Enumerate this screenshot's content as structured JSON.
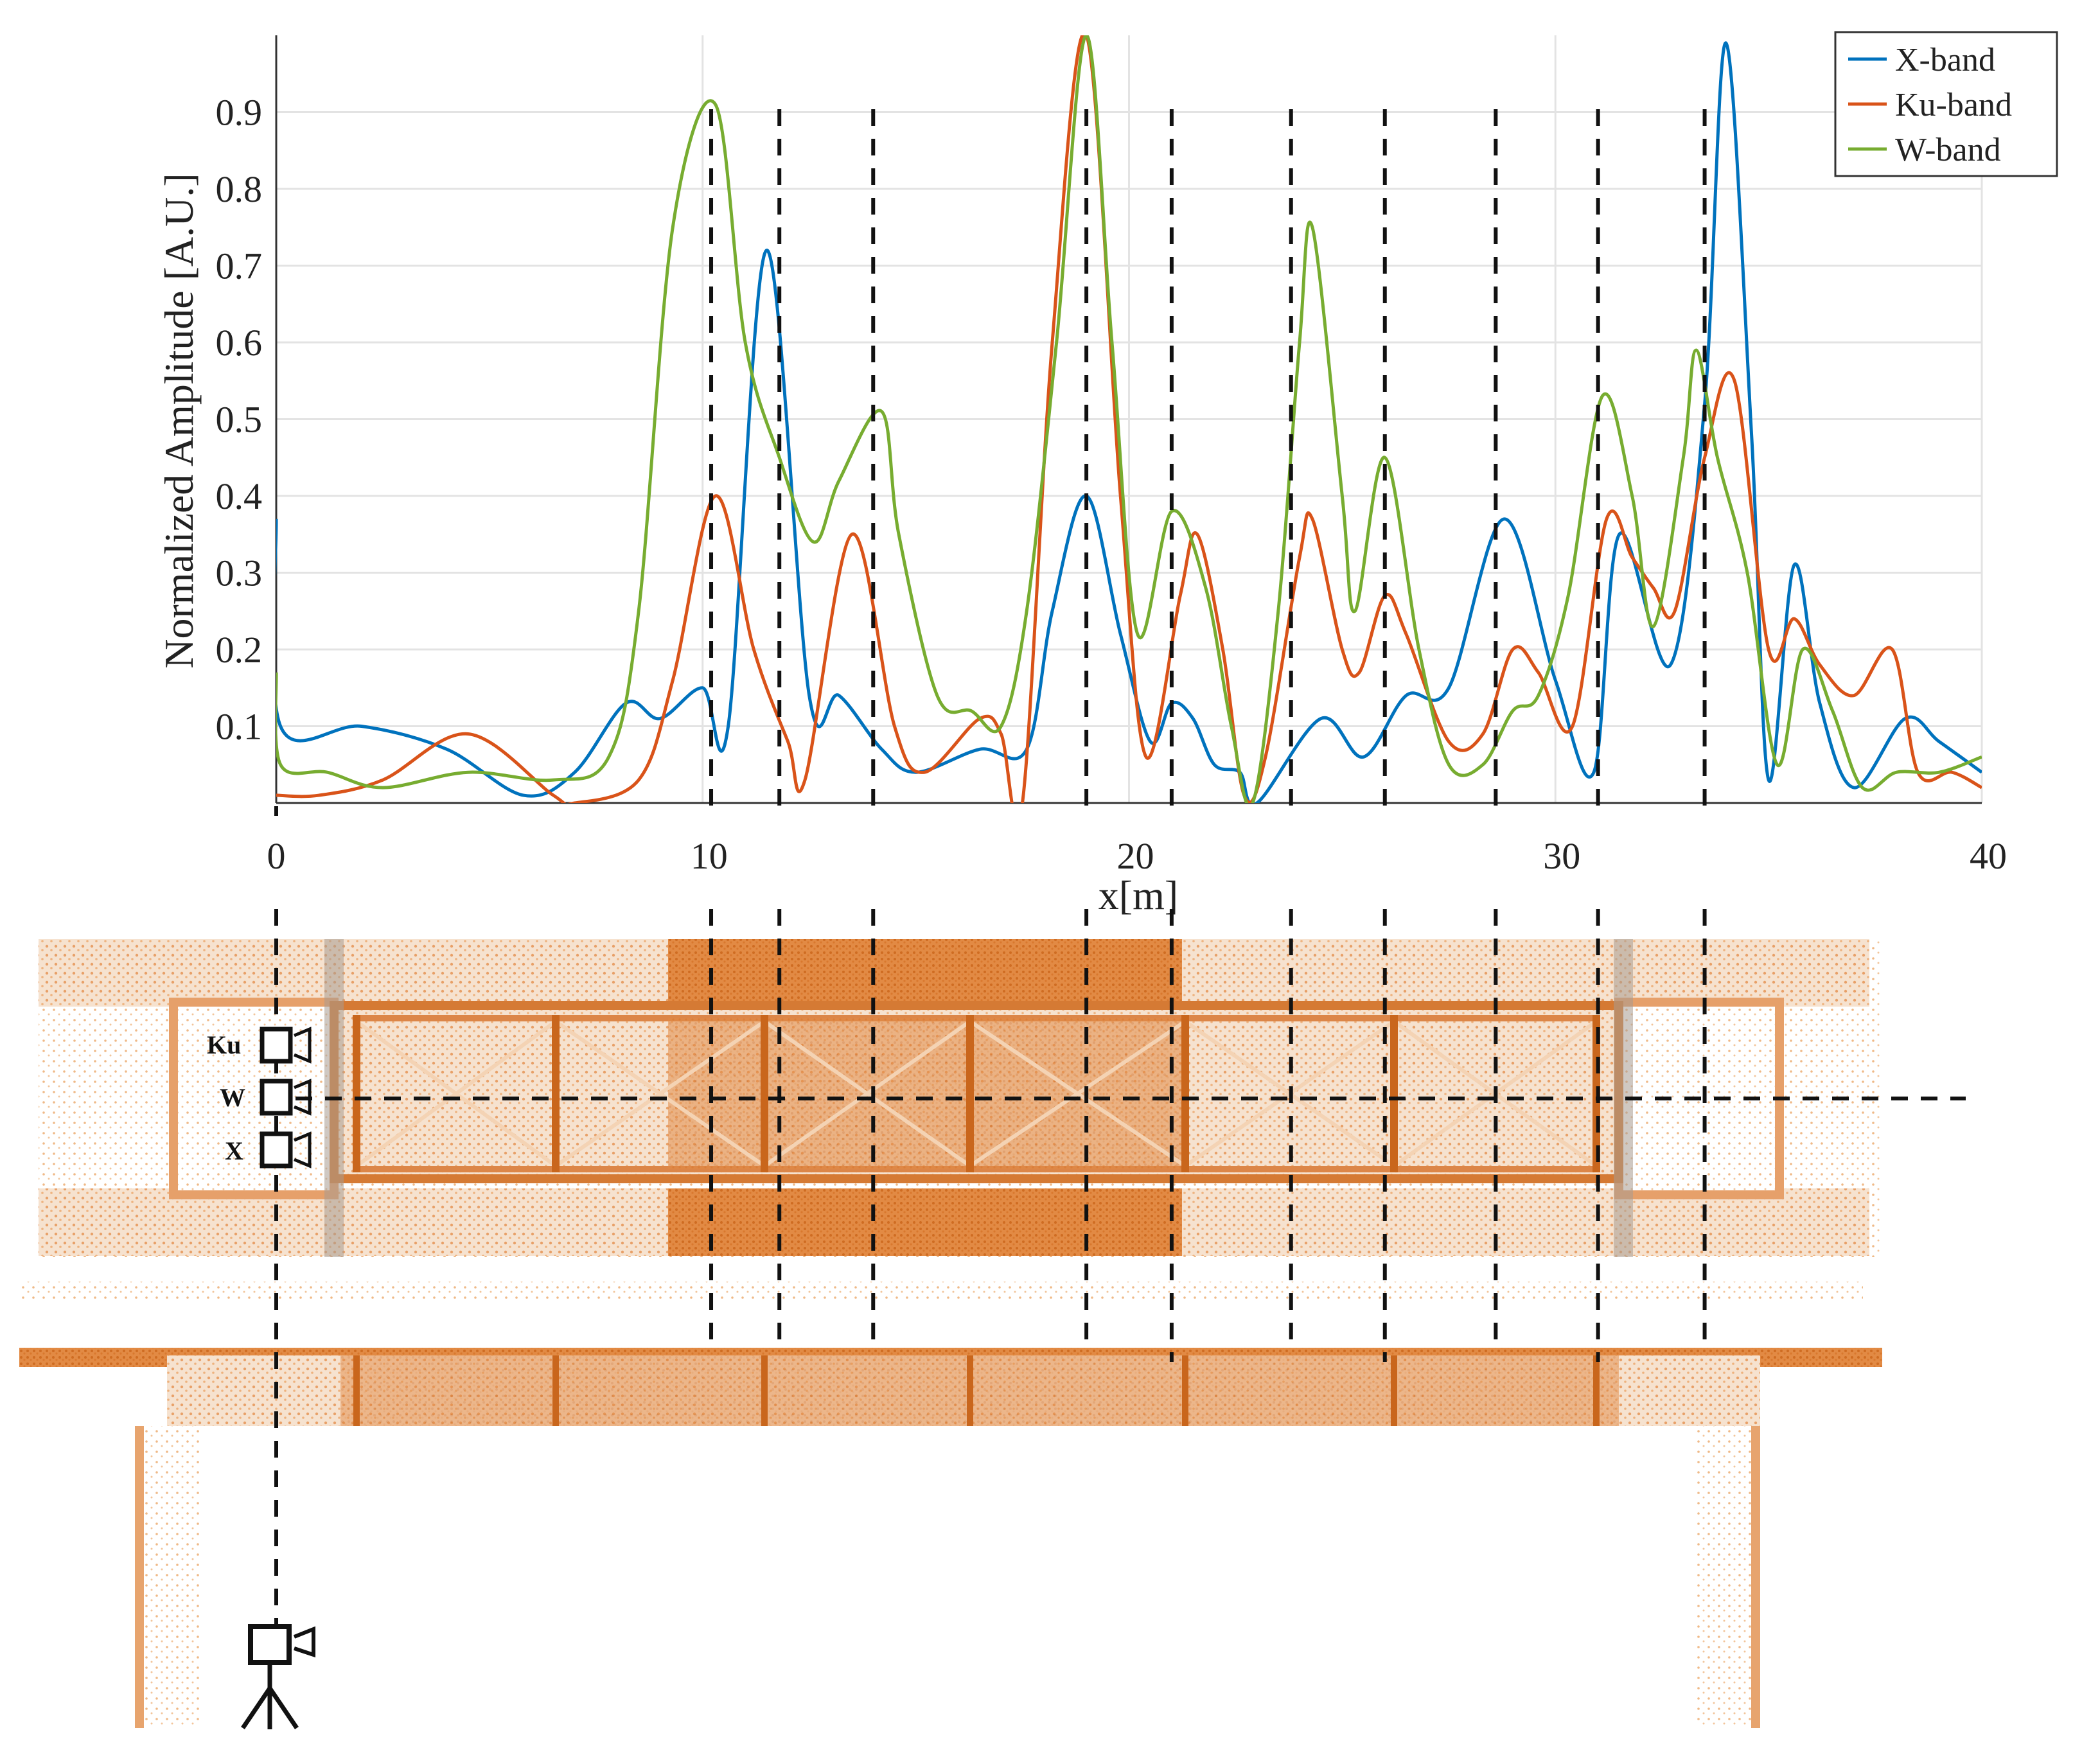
{
  "chart_data": {
    "type": "line",
    "title": "",
    "xlabel": "x[m]",
    "ylabel": "Normalized Amplitude [A.U.]",
    "xlim": [
      0,
      40
    ],
    "ylim": [
      0,
      1
    ],
    "xticks": [
      0,
      10,
      20,
      30,
      40
    ],
    "yticks": [
      0.1,
      0.2,
      0.3,
      0.4,
      0.5,
      0.6,
      0.7,
      0.8,
      0.9
    ],
    "grid": true,
    "legend_position": "top-right",
    "series": [
      {
        "name": "X-band",
        "color": "#0072BD",
        "points": [
          [
            0,
            0.37
          ],
          [
            0.1,
            0.1
          ],
          [
            2,
            0.1
          ],
          [
            4,
            0.07
          ],
          [
            5.8,
            0.01
          ],
          [
            7,
            0.04
          ],
          [
            8.2,
            0.13
          ],
          [
            9,
            0.11
          ],
          [
            10,
            0.15
          ],
          [
            10.6,
            0.1
          ],
          [
            11.5,
            0.72
          ],
          [
            12.5,
            0.14
          ],
          [
            13.2,
            0.14
          ],
          [
            14.2,
            0.07
          ],
          [
            15,
            0.04
          ],
          [
            16.5,
            0.07
          ],
          [
            17.6,
            0.07
          ],
          [
            18.2,
            0.25
          ],
          [
            19,
            0.4
          ],
          [
            19.8,
            0.22
          ],
          [
            20.5,
            0.08
          ],
          [
            21,
            0.13
          ],
          [
            21.5,
            0.11
          ],
          [
            22,
            0.05
          ],
          [
            22.6,
            0.04
          ],
          [
            23,
            0
          ],
          [
            24.5,
            0.11
          ],
          [
            25.5,
            0.06
          ],
          [
            26.5,
            0.14
          ],
          [
            27.5,
            0.15
          ],
          [
            28.8,
            0.37
          ],
          [
            30,
            0.16
          ],
          [
            30.9,
            0.04
          ],
          [
            31.5,
            0.35
          ],
          [
            32.7,
            0.18
          ],
          [
            33.5,
            0.52
          ],
          [
            34,
            0.99
          ],
          [
            34.6,
            0.48
          ],
          [
            35,
            0.03
          ],
          [
            35.6,
            0.31
          ],
          [
            36.2,
            0.13
          ],
          [
            37,
            0.02
          ],
          [
            38.2,
            0.11
          ],
          [
            39,
            0.08
          ],
          [
            40,
            0.04
          ]
        ]
      },
      {
        "name": "Ku-band",
        "color": "#D95319",
        "points": [
          [
            0,
            0.01
          ],
          [
            1,
            0.01
          ],
          [
            2.5,
            0.03
          ],
          [
            4.5,
            0.09
          ],
          [
            6.5,
            0.01
          ],
          [
            7,
            0
          ],
          [
            8.5,
            0.03
          ],
          [
            9.3,
            0.16
          ],
          [
            10.3,
            0.4
          ],
          [
            11.2,
            0.2
          ],
          [
            12,
            0.08
          ],
          [
            12.4,
            0.03
          ],
          [
            13.5,
            0.35
          ],
          [
            14.5,
            0.1
          ],
          [
            15.2,
            0.04
          ],
          [
            16.5,
            0.11
          ],
          [
            17,
            0.09
          ],
          [
            17.5,
            0
          ],
          [
            18.2,
            0.6
          ],
          [
            19,
            1.0
          ],
          [
            19.8,
            0.4
          ],
          [
            20.4,
            0.06
          ],
          [
            21.2,
            0.27
          ],
          [
            21.6,
            0.35
          ],
          [
            22.2,
            0.2
          ],
          [
            22.7,
            0.01
          ],
          [
            23.2,
            0.06
          ],
          [
            24,
            0.32
          ],
          [
            24.3,
            0.37
          ],
          [
            25,
            0.2
          ],
          [
            25.4,
            0.17
          ],
          [
            26,
            0.27
          ],
          [
            26.5,
            0.22
          ],
          [
            27.5,
            0.08
          ],
          [
            28.3,
            0.09
          ],
          [
            29,
            0.2
          ],
          [
            29.6,
            0.17
          ],
          [
            30.4,
            0.1
          ],
          [
            31.2,
            0.37
          ],
          [
            31.8,
            0.32
          ],
          [
            32.3,
            0.28
          ],
          [
            32.8,
            0.25
          ],
          [
            33.5,
            0.45
          ],
          [
            34.2,
            0.55
          ],
          [
            35,
            0.2
          ],
          [
            35.6,
            0.24
          ],
          [
            36.2,
            0.18
          ],
          [
            37,
            0.14
          ],
          [
            37.9,
            0.2
          ],
          [
            38.5,
            0.04
          ],
          [
            39.3,
            0.04
          ],
          [
            40,
            0.02
          ]
        ]
      },
      {
        "name": "W-band",
        "color": "#77AC30",
        "points": [
          [
            0,
            0.17
          ],
          [
            0.1,
            0.05
          ],
          [
            1.2,
            0.04
          ],
          [
            2.5,
            0.02
          ],
          [
            4.5,
            0.04
          ],
          [
            6.5,
            0.03
          ],
          [
            7.8,
            0.06
          ],
          [
            8.5,
            0.25
          ],
          [
            9.3,
            0.75
          ],
          [
            10.3,
            0.91
          ],
          [
            11,
            0.6
          ],
          [
            11.8,
            0.45
          ],
          [
            12.6,
            0.34
          ],
          [
            13.2,
            0.42
          ],
          [
            14.2,
            0.51
          ],
          [
            14.6,
            0.35
          ],
          [
            15.5,
            0.14
          ],
          [
            16.3,
            0.12
          ],
          [
            17,
            0.1
          ],
          [
            17.6,
            0.25
          ],
          [
            18.3,
            0.6
          ],
          [
            19,
            1.0
          ],
          [
            19.6,
            0.6
          ],
          [
            20.2,
            0.22
          ],
          [
            21,
            0.38
          ],
          [
            21.8,
            0.28
          ],
          [
            22.4,
            0.1
          ],
          [
            22.9,
            0
          ],
          [
            23.5,
            0.25
          ],
          [
            24,
            0.6
          ],
          [
            24.3,
            0.75
          ],
          [
            25,
            0.4
          ],
          [
            25.3,
            0.25
          ],
          [
            26,
            0.45
          ],
          [
            26.8,
            0.2
          ],
          [
            27.5,
            0.05
          ],
          [
            28.3,
            0.05
          ],
          [
            29,
            0.12
          ],
          [
            29.6,
            0.14
          ],
          [
            30.3,
            0.27
          ],
          [
            31.1,
            0.53
          ],
          [
            31.8,
            0.4
          ],
          [
            32.3,
            0.23
          ],
          [
            33,
            0.45
          ],
          [
            33.3,
            0.59
          ],
          [
            33.8,
            0.45
          ],
          [
            34.5,
            0.3
          ],
          [
            35.2,
            0.05
          ],
          [
            35.8,
            0.2
          ],
          [
            36.5,
            0.12
          ],
          [
            37.2,
            0.02
          ],
          [
            38,
            0.04
          ],
          [
            39,
            0.04
          ],
          [
            40,
            0.06
          ]
        ]
      }
    ],
    "reference_lines_x": [
      0,
      10.2,
      11.8,
      14,
      19,
      21,
      23.8,
      26,
      28.6,
      31,
      33.5
    ]
  },
  "radars": {
    "ku": "Ku",
    "w": "W",
    "x": "X"
  }
}
